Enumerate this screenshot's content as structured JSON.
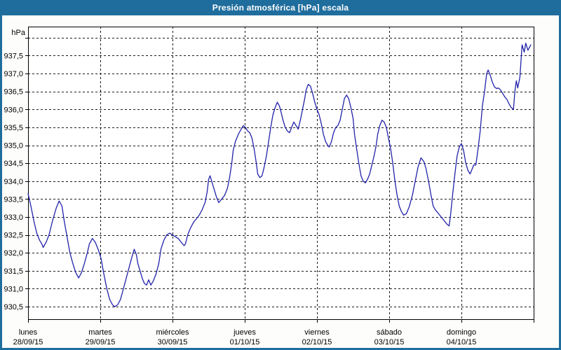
{
  "window": {
    "title": "Presión atmosférica [hPa] escala"
  },
  "colors": {
    "titlebar_bg": "#1f6d9d",
    "titlebar_text": "#ffffff",
    "window_border": "#1f6d9d",
    "background": "#fdfefc",
    "plot_bg": "#ffffff",
    "plot_border": "#000000",
    "gridline": "#1a1a1a",
    "axis_text": "#000000",
    "series_line": "#2222aa"
  },
  "chart_data": {
    "type": "line",
    "title": "Presión atmosférica [hPa] escala",
    "ylabel_unit": "hPa",
    "y_axis": {
      "grid": "dashed",
      "range_shown": [
        930.15,
        938.31
      ],
      "tick_step": 0.5,
      "unlabeled_top_gridline_value": 938.0,
      "tick_labels_top_to_bottom": [
        "937,5",
        "937,0",
        "936,5",
        "936,0",
        "935,5",
        "935,0",
        "934,5",
        "934,0",
        "933,5",
        "933,0",
        "932,5",
        "932,0",
        "931,5",
        "931,0",
        "930,5"
      ],
      "tick_values_top_to_bottom": [
        937.5,
        937.0,
        936.5,
        936.0,
        935.5,
        935.0,
        934.5,
        934.0,
        933.5,
        933.0,
        932.5,
        932.0,
        931.5,
        931.0,
        930.5
      ]
    },
    "x_axis": {
      "grid": "dashed",
      "span_days": 7,
      "days": [
        {
          "name": "lunes",
          "date": "28/09/15"
        },
        {
          "name": "martes",
          "date": "29/09/15"
        },
        {
          "name": "miércoles",
          "date": "30/09/15"
        },
        {
          "name": "jueves",
          "date": "01/10/15"
        },
        {
          "name": "viernes",
          "date": "02/10/15"
        },
        {
          "name": "sábado",
          "date": "03/10/15"
        },
        {
          "name": "domingo",
          "date": "04/10/15"
        }
      ]
    },
    "series": [
      {
        "name": "Presión atmosférica",
        "color": "#2222aa",
        "points_day_value": [
          [
            0.0,
            933.65
          ],
          [
            0.04,
            933.3
          ],
          [
            0.08,
            932.9
          ],
          [
            0.12,
            932.55
          ],
          [
            0.16,
            932.35
          ],
          [
            0.19,
            932.25
          ],
          [
            0.21,
            932.15
          ],
          [
            0.25,
            932.3
          ],
          [
            0.29,
            932.5
          ],
          [
            0.34,
            932.9
          ],
          [
            0.39,
            933.25
          ],
          [
            0.43,
            933.45
          ],
          [
            0.47,
            933.3
          ],
          [
            0.5,
            932.9
          ],
          [
            0.54,
            932.45
          ],
          [
            0.58,
            932.0
          ],
          [
            0.62,
            931.7
          ],
          [
            0.66,
            931.45
          ],
          [
            0.7,
            931.3
          ],
          [
            0.74,
            931.45
          ],
          [
            0.78,
            931.7
          ],
          [
            0.82,
            932.0
          ],
          [
            0.85,
            932.25
          ],
          [
            0.89,
            932.4
          ],
          [
            0.93,
            932.3
          ],
          [
            0.97,
            932.1
          ],
          [
            1.01,
            931.85
          ],
          [
            1.05,
            931.4
          ],
          [
            1.09,
            931.0
          ],
          [
            1.13,
            930.7
          ],
          [
            1.17,
            930.55
          ],
          [
            1.2,
            930.5
          ],
          [
            1.24,
            930.55
          ],
          [
            1.28,
            930.7
          ],
          [
            1.32,
            931.0
          ],
          [
            1.36,
            931.3
          ],
          [
            1.4,
            931.6
          ],
          [
            1.44,
            931.9
          ],
          [
            1.47,
            932.1
          ],
          [
            1.5,
            931.95
          ],
          [
            1.52,
            931.7
          ],
          [
            1.55,
            931.5
          ],
          [
            1.58,
            931.3
          ],
          [
            1.61,
            931.15
          ],
          [
            1.64,
            931.1
          ],
          [
            1.67,
            931.25
          ],
          [
            1.7,
            931.1
          ],
          [
            1.73,
            931.2
          ],
          [
            1.77,
            931.4
          ],
          [
            1.81,
            931.7
          ],
          [
            1.84,
            932.1
          ],
          [
            1.88,
            932.35
          ],
          [
            1.92,
            932.5
          ],
          [
            1.96,
            932.55
          ],
          [
            2.0,
            932.5
          ],
          [
            2.04,
            932.45
          ],
          [
            2.08,
            932.4
          ],
          [
            2.12,
            932.3
          ],
          [
            2.16,
            932.2
          ],
          [
            2.18,
            932.25
          ],
          [
            2.21,
            932.5
          ],
          [
            2.25,
            932.7
          ],
          [
            2.29,
            932.85
          ],
          [
            2.33,
            932.95
          ],
          [
            2.37,
            933.05
          ],
          [
            2.41,
            933.2
          ],
          [
            2.45,
            933.4
          ],
          [
            2.48,
            933.7
          ],
          [
            2.5,
            934.05
          ],
          [
            2.52,
            934.15
          ],
          [
            2.55,
            933.95
          ],
          [
            2.58,
            933.75
          ],
          [
            2.61,
            933.55
          ],
          [
            2.64,
            933.4
          ],
          [
            2.68,
            933.5
          ],
          [
            2.72,
            933.6
          ],
          [
            2.76,
            933.8
          ],
          [
            2.79,
            934.1
          ],
          [
            2.82,
            934.5
          ],
          [
            2.84,
            934.85
          ],
          [
            2.87,
            935.1
          ],
          [
            2.91,
            935.3
          ],
          [
            2.95,
            935.45
          ],
          [
            2.98,
            935.55
          ],
          [
            3.01,
            935.5
          ],
          [
            3.04,
            935.4
          ],
          [
            3.07,
            935.35
          ],
          [
            3.1,
            935.2
          ],
          [
            3.13,
            934.9
          ],
          [
            3.16,
            934.5
          ],
          [
            3.18,
            934.2
          ],
          [
            3.21,
            934.1
          ],
          [
            3.24,
            934.15
          ],
          [
            3.27,
            934.4
          ],
          [
            3.3,
            934.7
          ],
          [
            3.33,
            935.1
          ],
          [
            3.36,
            935.5
          ],
          [
            3.39,
            935.85
          ],
          [
            3.42,
            936.05
          ],
          [
            3.45,
            936.2
          ],
          [
            3.48,
            936.1
          ],
          [
            3.5,
            935.95
          ],
          [
            3.53,
            935.7
          ],
          [
            3.56,
            935.5
          ],
          [
            3.59,
            935.4
          ],
          [
            3.62,
            935.35
          ],
          [
            3.65,
            935.5
          ],
          [
            3.68,
            935.65
          ],
          [
            3.71,
            935.55
          ],
          [
            3.74,
            935.45
          ],
          [
            3.77,
            935.7
          ],
          [
            3.8,
            936.0
          ],
          [
            3.83,
            936.3
          ],
          [
            3.85,
            936.55
          ],
          [
            3.88,
            936.7
          ],
          [
            3.91,
            936.65
          ],
          [
            3.94,
            936.45
          ],
          [
            3.97,
            936.2
          ],
          [
            4.0,
            936.0
          ],
          [
            4.03,
            935.85
          ],
          [
            4.06,
            935.6
          ],
          [
            4.09,
            935.3
          ],
          [
            4.12,
            935.1
          ],
          [
            4.15,
            935.0
          ],
          [
            4.17,
            934.95
          ],
          [
            4.2,
            935.1
          ],
          [
            4.23,
            935.35
          ],
          [
            4.26,
            935.5
          ],
          [
            4.29,
            935.55
          ],
          [
            4.32,
            935.7
          ],
          [
            4.35,
            936.0
          ],
          [
            4.38,
            936.3
          ],
          [
            4.41,
            936.4
          ],
          [
            4.44,
            936.3
          ],
          [
            4.47,
            936.05
          ],
          [
            4.5,
            935.75
          ],
          [
            4.52,
            935.3
          ],
          [
            4.55,
            934.9
          ],
          [
            4.58,
            934.5
          ],
          [
            4.61,
            934.15
          ],
          [
            4.64,
            934.0
          ],
          [
            4.67,
            933.95
          ],
          [
            4.7,
            934.05
          ],
          [
            4.73,
            934.2
          ],
          [
            4.76,
            934.45
          ],
          [
            4.79,
            934.7
          ],
          [
            4.82,
            935.0
          ],
          [
            4.84,
            935.3
          ],
          [
            4.87,
            935.55
          ],
          [
            4.9,
            935.7
          ],
          [
            4.93,
            935.65
          ],
          [
            4.96,
            935.5
          ],
          [
            4.99,
            935.2
          ],
          [
            5.02,
            934.9
          ],
          [
            5.05,
            934.5
          ],
          [
            5.08,
            934.0
          ],
          [
            5.11,
            933.6
          ],
          [
            5.14,
            933.3
          ],
          [
            5.17,
            933.15
          ],
          [
            5.2,
            933.05
          ],
          [
            5.24,
            933.1
          ],
          [
            5.28,
            933.3
          ],
          [
            5.32,
            933.6
          ],
          [
            5.36,
            934.0
          ],
          [
            5.4,
            934.4
          ],
          [
            5.44,
            934.65
          ],
          [
            5.48,
            934.55
          ],
          [
            5.51,
            934.35
          ],
          [
            5.55,
            933.95
          ],
          [
            5.58,
            933.6
          ],
          [
            5.61,
            933.3
          ],
          [
            5.64,
            933.2
          ],
          [
            5.68,
            933.1
          ],
          [
            5.72,
            933.0
          ],
          [
            5.76,
            932.9
          ],
          [
            5.8,
            932.8
          ],
          [
            5.83,
            932.75
          ],
          [
            5.85,
            933.05
          ],
          [
            5.88,
            933.65
          ],
          [
            5.91,
            934.2
          ],
          [
            5.94,
            934.7
          ],
          [
            5.97,
            934.95
          ],
          [
            6.0,
            935.05
          ],
          [
            6.03,
            934.85
          ],
          [
            6.06,
            934.5
          ],
          [
            6.09,
            934.3
          ],
          [
            6.12,
            934.2
          ],
          [
            6.15,
            934.35
          ],
          [
            6.17,
            934.45
          ],
          [
            6.2,
            934.45
          ],
          [
            6.23,
            934.9
          ],
          [
            6.26,
            935.4
          ],
          [
            6.29,
            936.1
          ],
          [
            6.32,
            936.5
          ],
          [
            6.35,
            937.0
          ],
          [
            6.37,
            937.1
          ],
          [
            6.4,
            936.95
          ],
          [
            6.43,
            936.75
          ],
          [
            6.46,
            936.62
          ],
          [
            6.49,
            936.58
          ],
          [
            6.51,
            936.6
          ],
          [
            6.54,
            936.55
          ],
          [
            6.57,
            936.45
          ],
          [
            6.6,
            936.35
          ],
          [
            6.63,
            936.28
          ],
          [
            6.66,
            936.15
          ],
          [
            6.69,
            936.05
          ],
          [
            6.72,
            936.0
          ],
          [
            6.74,
            936.5
          ],
          [
            6.76,
            936.8
          ],
          [
            6.78,
            936.6
          ],
          [
            6.81,
            936.9
          ],
          [
            6.84,
            937.8
          ],
          [
            6.87,
            937.6
          ],
          [
            6.89,
            937.85
          ],
          [
            6.92,
            937.65
          ],
          [
            6.96,
            937.8
          ]
        ]
      }
    ]
  }
}
